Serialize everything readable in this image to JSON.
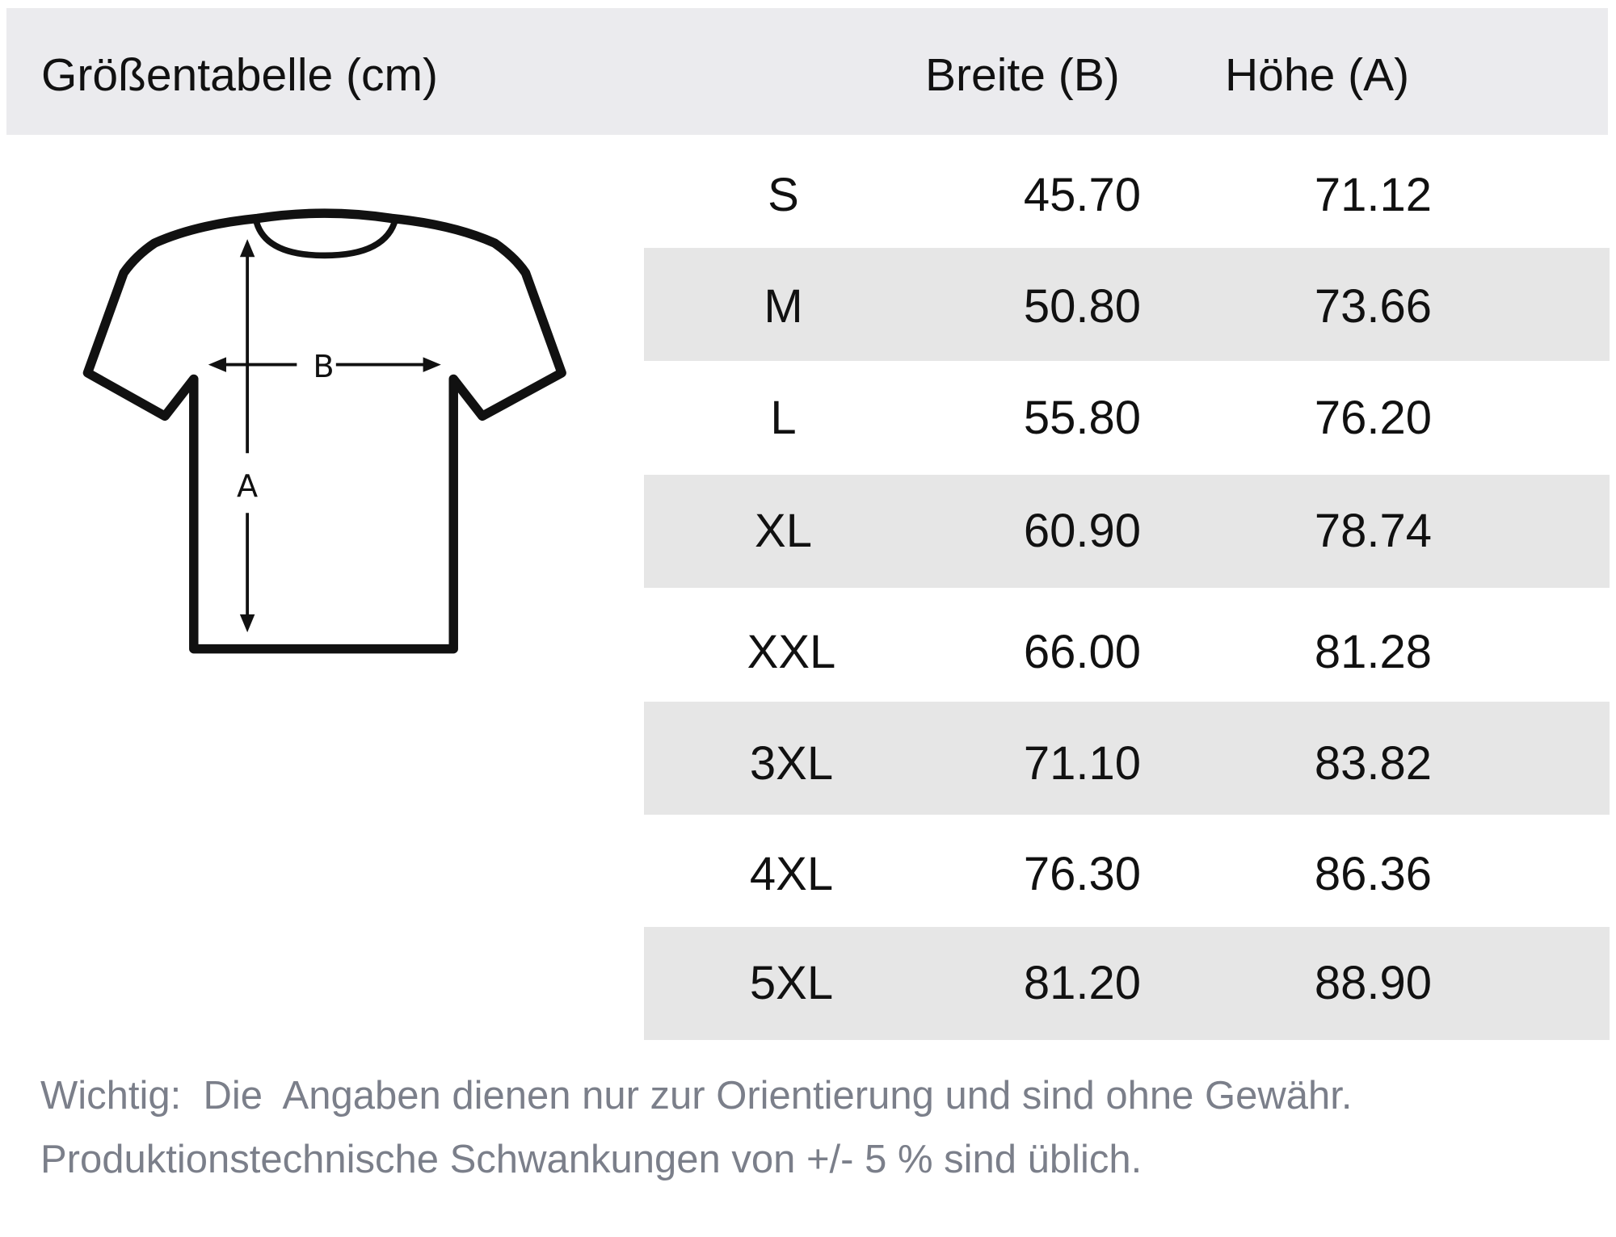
{
  "header": {
    "title": "Größentabelle (cm)",
    "col_width": "Breite (B)",
    "col_height": "Höhe (A)"
  },
  "diagram": {
    "label_width": "B",
    "label_height": "A"
  },
  "rows": [
    {
      "size": "S",
      "width": "45.70",
      "height": "71.12"
    },
    {
      "size": "M",
      "width": "50.80",
      "height": "73.66"
    },
    {
      "size": "L",
      "width": "55.80",
      "height": "76.20"
    },
    {
      "size": "XL",
      "width": "60.90",
      "height": "78.74"
    },
    {
      "size": "XXL",
      "width": "66.00",
      "height": "81.28"
    },
    {
      "size": "3XL",
      "width": "71.10",
      "height": "83.82"
    },
    {
      "size": "4XL",
      "width": "76.30",
      "height": "86.36"
    },
    {
      "size": "5XL",
      "width": "81.20",
      "height": "88.90"
    }
  ],
  "note": {
    "line1": "Wichtig:  Die  Angaben dienen nur zur Orientierung und sind ohne Gewähr.",
    "line2": "Produktionstechnische Schwankungen von +/- 5 % sind üblich."
  },
  "colors": {
    "header_bg": "#ebebee",
    "band_bg": "#e6e6e6",
    "note_text": "#7b7f8a"
  }
}
